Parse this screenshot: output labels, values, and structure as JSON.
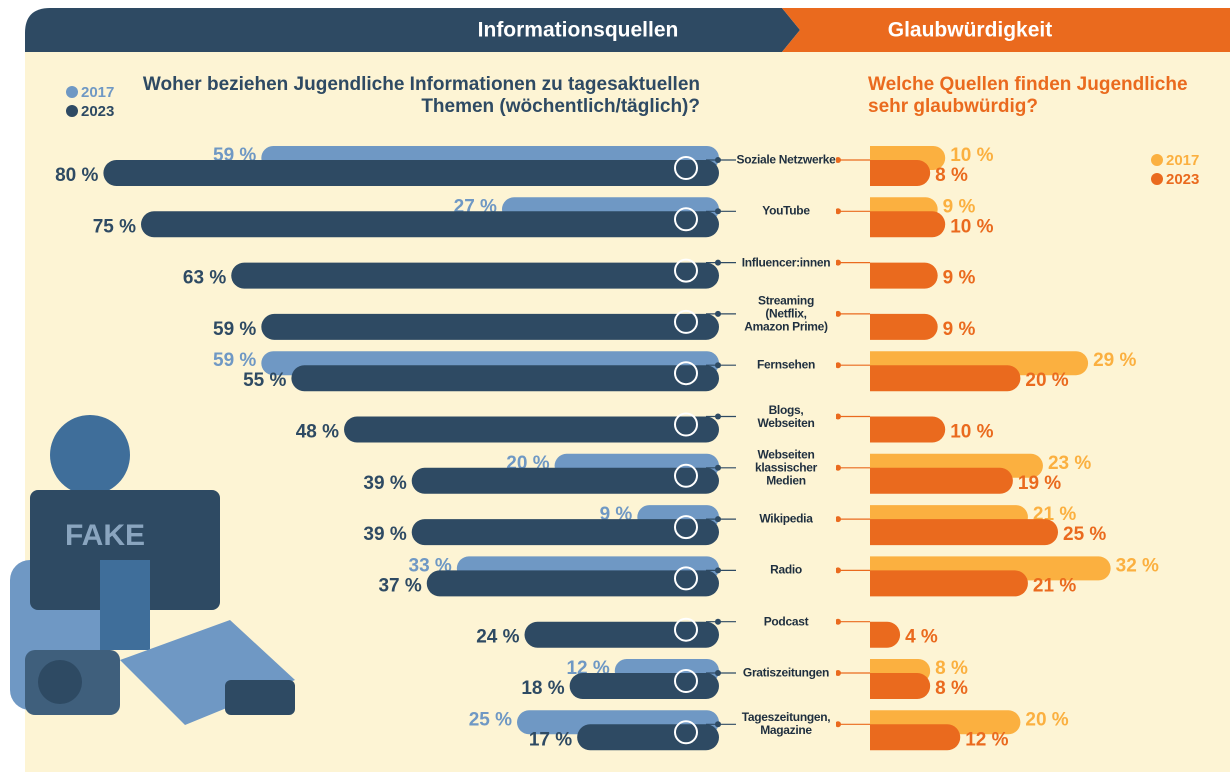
{
  "chart_data": [
    {
      "type": "bar",
      "heading": "Informationsquellen",
      "title": "Woher beziehen Jugendliche Informationen zu tagesaktuellen Themen (wöchentlich/täglich)?",
      "categories": [
        "Soziale Netzwerke",
        "YouTube",
        "Influencer:innen",
        "Streaming\n(Netflix,\nAmazon Prime)",
        "Fernsehen",
        "Blogs,\nWebseiten",
        "Webseiten\nklassischer\nMedien",
        "Wikipedia",
        "Radio",
        "Podcast",
        "Gratiszeitungen",
        "Tageszeitungen,\nMagazine"
      ],
      "series": [
        {
          "name": "2017",
          "color": "#6f98c4",
          "values": [
            59,
            27,
            null,
            null,
            59,
            null,
            20,
            9,
            33,
            null,
            12,
            25
          ],
          "value_labels": [
            "59 %",
            "27 %",
            null,
            null,
            "59 %",
            null,
            "20 %",
            "9 %",
            "33 %",
            null,
            "12 %",
            "25 %"
          ]
        },
        {
          "name": "2023",
          "color": "#2e4a63",
          "values": [
            80,
            75,
            63,
            59,
            55,
            48,
            39,
            39,
            37,
            24,
            18,
            17
          ],
          "value_labels": [
            "80 %",
            "75 %",
            "63 %",
            "59 %",
            "55 %",
            "48 %",
            "39 %",
            "39 %",
            "37 %",
            "24 %",
            "18 %",
            "17 %"
          ]
        }
      ]
    },
    {
      "type": "bar",
      "heading": "Glaubwürdigkeit",
      "title": "Welche Quellen finden Jugendliche sehr glaubwürdig?",
      "series": [
        {
          "name": "2017",
          "color": "#fbb040",
          "values": [
            10,
            9,
            null,
            null,
            29,
            null,
            23,
            21,
            32,
            null,
            8,
            20
          ],
          "value_labels": [
            "10 %",
            "9 %",
            null,
            null,
            "29 %",
            null,
            "23 %",
            "21 %",
            "32 %",
            null,
            "8 %",
            "20 %"
          ]
        },
        {
          "name": "2023",
          "color": "#ea6a1e",
          "values": [
            8,
            10,
            9,
            9,
            20,
            10,
            19,
            25,
            21,
            4,
            8,
            12
          ],
          "value_labels": [
            "8 %",
            "10 %",
            "9 %",
            "9 %",
            "20 %",
            "10 %",
            "19 %",
            "25 %",
            "21 %",
            "4 %",
            "8 %",
            "12 %"
          ]
        }
      ]
    }
  ],
  "illustration": {
    "screen_text": "FAKE"
  }
}
